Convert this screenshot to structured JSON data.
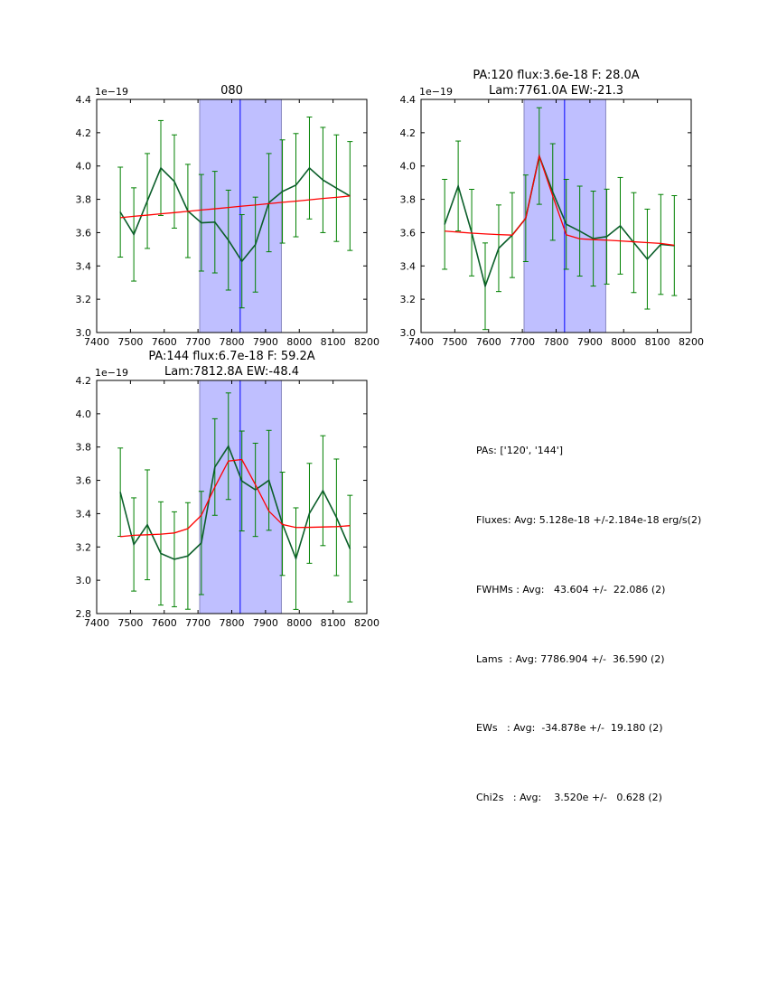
{
  "colors": {
    "data_line": "#0b5e2a",
    "error_bars": "#008000",
    "fit_line": "#ff0000",
    "region_fill": "#bfbfff",
    "region_edge": "#8a8ac0",
    "center_line": "#0000ff"
  },
  "chart_data": [
    {
      "type": "line",
      "title_lines": [
        "080"
      ],
      "offset_label": "1e−19",
      "xlim": [
        7400,
        8200
      ],
      "ylim": [
        3.0,
        4.4
      ],
      "xticks": [
        7400,
        7500,
        7600,
        7700,
        7800,
        7900,
        8000,
        8100,
        8200
      ],
      "yticks": [
        "3.0",
        "3.2",
        "3.4",
        "3.6",
        "3.8",
        "4.0",
        "4.2",
        "4.4"
      ],
      "x": [
        7470,
        7510,
        7550,
        7590,
        7630,
        7670,
        7710,
        7750,
        7790,
        7830,
        7870,
        7910,
        7950,
        7990,
        8030,
        8070,
        8110,
        8150
      ],
      "y": [
        3.723,
        3.589,
        3.79,
        3.988,
        3.907,
        3.73,
        3.659,
        3.663,
        3.555,
        3.428,
        3.528,
        3.78,
        3.847,
        3.885,
        3.988,
        3.916,
        3.867,
        3.82
      ],
      "err": [
        0.27,
        0.28,
        0.285,
        0.285,
        0.28,
        0.28,
        0.29,
        0.305,
        0.3,
        0.28,
        0.285,
        0.295,
        0.31,
        0.31,
        0.306,
        0.316,
        0.32,
        0.327
      ],
      "fit": [
        3.69,
        3.698,
        3.705,
        3.713,
        3.72,
        3.728,
        3.736,
        3.743,
        3.751,
        3.759,
        3.766,
        3.774,
        3.782,
        3.789,
        3.797,
        3.805,
        3.812,
        3.82
      ],
      "region": [
        7705,
        7947
      ],
      "center": 7825
    },
    {
      "type": "line",
      "title_lines": [
        "PA:120 flux:3.6e-18 F: 28.0A",
        "Lam:7761.0A EW:-21.3"
      ],
      "offset_label": "1e−19",
      "xlim": [
        7400,
        8200
      ],
      "ylim": [
        3.0,
        4.4
      ],
      "xticks": [
        7400,
        7500,
        7600,
        7700,
        7800,
        7900,
        8000,
        8100,
        8200
      ],
      "yticks": [
        "3.0",
        "3.2",
        "3.4",
        "3.6",
        "3.8",
        "4.0",
        "4.2",
        "4.4"
      ],
      "x": [
        7470,
        7510,
        7550,
        7590,
        7630,
        7670,
        7710,
        7750,
        7790,
        7830,
        7870,
        7910,
        7950,
        7990,
        8030,
        8070,
        8110,
        8150
      ],
      "y": [
        3.65,
        3.88,
        3.6,
        3.278,
        3.506,
        3.585,
        3.686,
        4.06,
        3.844,
        3.65,
        3.609,
        3.564,
        3.576,
        3.641,
        3.54,
        3.441,
        3.529,
        3.522
      ],
      "err": [
        0.27,
        0.27,
        0.26,
        0.26,
        0.26,
        0.255,
        0.26,
        0.29,
        0.29,
        0.27,
        0.27,
        0.285,
        0.285,
        0.29,
        0.3,
        0.3,
        0.3,
        0.3
      ],
      "fit": [
        3.609,
        3.603,
        3.597,
        3.592,
        3.588,
        3.585,
        3.686,
        4.06,
        3.82,
        3.587,
        3.563,
        3.558,
        3.555,
        3.55,
        3.545,
        3.54,
        3.535,
        3.524
      ],
      "region": [
        7705,
        7947
      ],
      "center": 7825
    },
    {
      "type": "line",
      "title_lines": [
        "PA:144 flux:6.7e-18 F: 59.2A",
        "Lam:7812.8A EW:-48.4"
      ],
      "offset_label": "1e−19",
      "xlim": [
        7400,
        8200
      ],
      "ylim": [
        2.8,
        4.2
      ],
      "xticks": [
        7400,
        7500,
        7600,
        7700,
        7800,
        7900,
        8000,
        8100,
        8200
      ],
      "yticks": [
        "2.8",
        "3.0",
        "3.2",
        "3.4",
        "3.6",
        "3.8",
        "4.0",
        "4.2"
      ],
      "x": [
        7470,
        7510,
        7550,
        7590,
        7630,
        7670,
        7710,
        7750,
        7790,
        7830,
        7870,
        7910,
        7950,
        7990,
        8030,
        8070,
        8110,
        8150
      ],
      "y": [
        3.529,
        3.215,
        3.333,
        3.161,
        3.126,
        3.146,
        3.224,
        3.68,
        3.805,
        3.596,
        3.543,
        3.6,
        3.339,
        3.13,
        3.402,
        3.538,
        3.378,
        3.19
      ],
      "err": [
        0.265,
        0.28,
        0.33,
        0.31,
        0.285,
        0.32,
        0.31,
        0.29,
        0.32,
        0.3,
        0.28,
        0.3,
        0.31,
        0.305,
        0.3,
        0.33,
        0.35,
        0.32
      ],
      "fit": [
        3.262,
        3.27,
        3.273,
        3.277,
        3.284,
        3.31,
        3.39,
        3.56,
        3.716,
        3.725,
        3.574,
        3.415,
        3.335,
        3.317,
        3.318,
        3.32,
        3.322,
        3.328
      ],
      "region": [
        7705,
        7947
      ],
      "center": 7825
    }
  ],
  "stats": {
    "pas": "PAs: ['120', '144']",
    "fluxes": "Fluxes: Avg: 5.128e-18 +/-2.184e-18 erg/s(2)",
    "fwhms": "FWHMs : Avg:   43.604 +/-  22.086 (2)",
    "lams": "Lams  : Avg: 7786.904 +/-  36.590 (2)",
    "ews": "EWs   : Avg:  -34.878e +/-  19.180 (2)",
    "chi2s": "Chi2s   : Avg:    3.520e +/-   0.628 (2)"
  }
}
